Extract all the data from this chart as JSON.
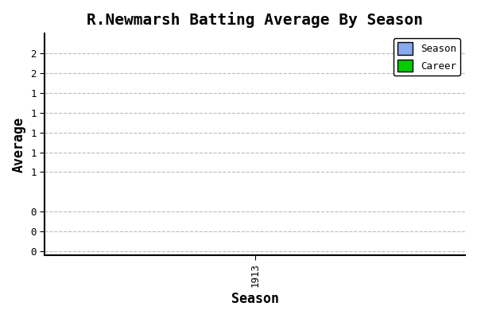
{
  "title": "R.Newmarsh Batting Average By Season",
  "xlabel": "Season",
  "ylabel": "Average",
  "x_ticks": [
    1913
  ],
  "x_tick_labels": [
    "1913"
  ],
  "xlim": [
    1912.5,
    1913.5
  ],
  "season_color": "#88aaee",
  "career_color": "#00cc00",
  "bg_color": "#ffffff",
  "plot_bg_color": "#ffffff",
  "grid_color": "#bbbbbb",
  "legend_labels": [
    "Season",
    "Career"
  ],
  "font_family": "monospace",
  "title_fontsize": 14,
  "label_fontsize": 12,
  "tick_fontsize": 9,
  "y_positions": [
    0.0,
    0.025,
    0.05,
    0.1,
    0.125,
    0.15,
    0.175,
    0.2,
    0.225,
    0.25
  ],
  "y_labels": [
    "0",
    "0",
    "0",
    "1",
    "1",
    "1",
    "1",
    "1",
    "2",
    "2"
  ],
  "ylim": [
    -0.005,
    0.275
  ]
}
